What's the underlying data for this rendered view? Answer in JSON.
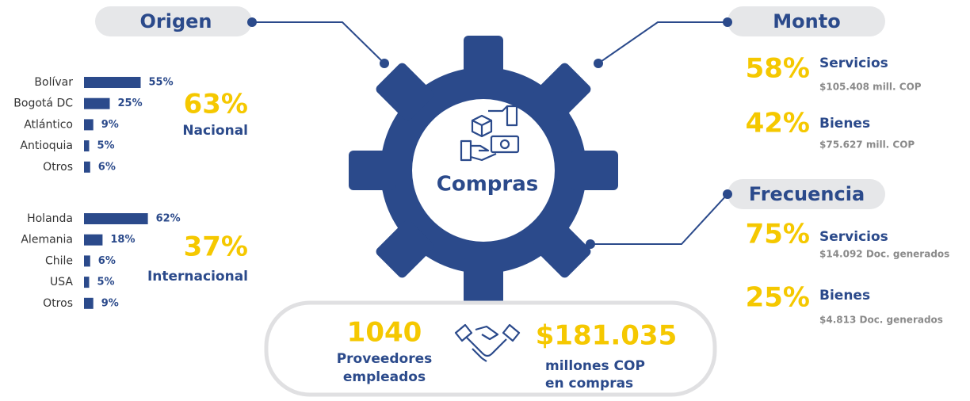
{
  "origen": {
    "title": "Origen",
    "nacional": {
      "percent": "63%",
      "label": "Nacional"
    },
    "internacional": {
      "percent": "37%",
      "label": "Internacional"
    }
  },
  "chart_data": [
    {
      "type": "bar",
      "orientation": "horizontal",
      "color": "#2b4a8b",
      "categories": [
        "Bolívar",
        "Bogotá DC",
        "Atlántico",
        "Antioquia",
        "Otros"
      ],
      "values": [
        55,
        25,
        9,
        5,
        6
      ],
      "value_labels": [
        "55%",
        "25%",
        "9%",
        "5%",
        "6%"
      ]
    },
    {
      "type": "bar",
      "orientation": "horizontal",
      "color": "#2b4a8b",
      "categories": [
        "Holanda",
        "Alemania",
        "Chile",
        "USA",
        "Otros"
      ],
      "values": [
        62,
        18,
        6,
        5,
        9
      ],
      "value_labels": [
        "62%",
        "18%",
        "6%",
        "5%",
        "9%"
      ]
    }
  ],
  "center": {
    "label": "Compras"
  },
  "monto": {
    "title": "Monto",
    "items": [
      {
        "percent": "58%",
        "label": "Servicios",
        "detail": "$105.408 mill. COP"
      },
      {
        "percent": "42%",
        "label": "Bienes",
        "detail": "$75.627 mill. COP"
      }
    ]
  },
  "frecuencia": {
    "title": "Frecuencia",
    "items": [
      {
        "percent": "75%",
        "label": "Servicios",
        "detail": "$14.092 Doc. generados"
      },
      {
        "percent": "25%",
        "label": "Bienes",
        "detail": "$4.813 Doc. generados"
      }
    ]
  },
  "summary": {
    "providers": {
      "value": "1040",
      "line1": "Proveedores",
      "line2": "empleados"
    },
    "total": {
      "value": "$181.035",
      "line1": "millones COP",
      "line2": "en compras"
    }
  }
}
